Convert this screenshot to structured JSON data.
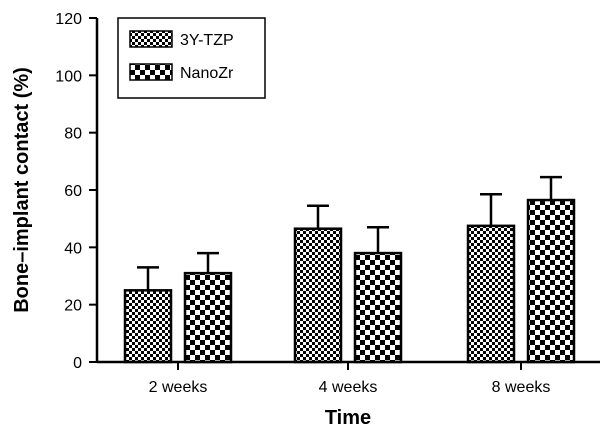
{
  "chart_data": {
    "type": "bar",
    "xlabel": "Time",
    "ylabel": "Bone–implant contact (%)",
    "categories": [
      "2 weeks",
      "4 weeks",
      "8 weeks"
    ],
    "ylim": [
      0,
      120
    ],
    "yticks": [
      0,
      20,
      40,
      60,
      80,
      100,
      120
    ],
    "error_bars": "upper only",
    "grid": false,
    "legend_position": "top-left",
    "series": [
      {
        "name": "3Y-TZP",
        "pattern": "fine-checker",
        "values": [
          25,
          46.5,
          47.5
        ],
        "error": [
          8,
          8,
          11
        ]
      },
      {
        "name": "NanoZr",
        "pattern": "coarse-checker",
        "values": [
          31,
          38,
          56.5
        ],
        "error": [
          7,
          9,
          8
        ]
      }
    ]
  }
}
